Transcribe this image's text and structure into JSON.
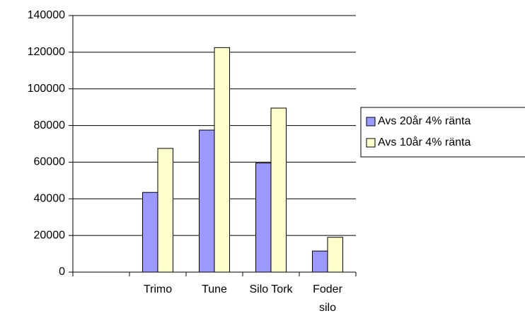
{
  "chart_data": {
    "type": "bar",
    "categories": [
      null,
      "Trimo",
      "Tune",
      "Silo Tork",
      "Foder silo"
    ],
    "series": [
      {
        "name": "Avs 20år 4% ränta",
        "color": "#9999ff",
        "values": [
          null,
          43500,
          77500,
          59500,
          11500
        ]
      },
      {
        "name": "Avs 10år 4% ränta",
        "color": "#ffffcc",
        "values": [
          null,
          67500,
          122500,
          89500,
          19000
        ]
      }
    ],
    "ylim": [
      0,
      140000
    ],
    "yticks": [
      0,
      20000,
      40000,
      60000,
      80000,
      100000,
      120000,
      140000
    ],
    "grid": true,
    "legend": "right"
  }
}
